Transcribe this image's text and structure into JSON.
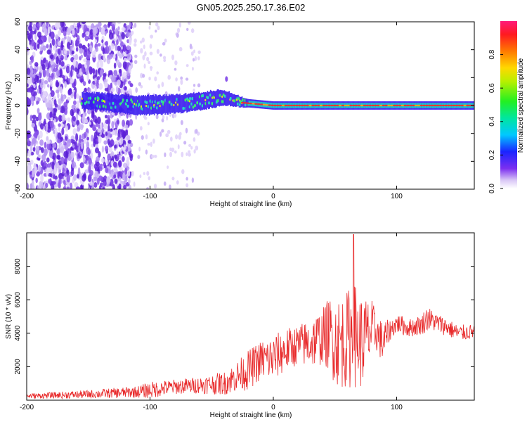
{
  "title": "GN05.2025.250.17.36.E02",
  "colors": {
    "axis": "#000000",
    "snr_line": "#e8292a",
    "ridge_core": "#e8362f",
    "ridge_mid": "#20c8c8",
    "ridge_outer": "#3a1cf0",
    "scatter_dark": "#5b1fd6",
    "scatter_light": "#c9b4f2"
  },
  "chart_data": [
    {
      "type": "heatmap",
      "name": "spectrogram",
      "xlabel": "Height of straight line (km)",
      "ylabel": "Frequency (Hz)",
      "xlim": [
        -200,
        163
      ],
      "ylim": [
        -60,
        60
      ],
      "x_ticks": [
        -200,
        -100,
        0,
        100
      ],
      "x_tick_labels": [
        "-200",
        "-100",
        "0",
        "100"
      ],
      "y_ticks": [
        -60,
        -40,
        -20,
        0,
        20,
        40,
        60
      ],
      "y_tick_labels": [
        "-60",
        "-40",
        "-20",
        "0",
        "20",
        "40",
        "60"
      ],
      "colorbar": {
        "label": "Normalized spectral amplitude",
        "range": [
          0,
          1
        ],
        "ticks": [
          0.0,
          0.2,
          0.4,
          0.6,
          0.8
        ],
        "tick_labels": [
          "0.0",
          "0.2",
          "0.4",
          "0.6",
          "0.8"
        ]
      },
      "features": {
        "noise_region_x": [
          -200,
          -115
        ],
        "sparse_noise_x": [
          -115,
          -60
        ],
        "band_start_x": -155,
        "band_center_freq_hz": [
          [
            -155,
            4
          ],
          [
            -110,
            0
          ],
          [
            -80,
            1
          ],
          [
            -60,
            3
          ],
          [
            -40,
            6
          ],
          [
            -25,
            2
          ],
          [
            0,
            0
          ],
          [
            50,
            0
          ],
          [
            163,
            0
          ]
        ],
        "band_halfwidth_hz": [
          [
            -155,
            6
          ],
          [
            -100,
            7
          ],
          [
            -45,
            6
          ],
          [
            -20,
            3
          ],
          [
            0,
            3
          ],
          [
            163,
            3
          ]
        ],
        "peak_amplitude_x": [
          -25,
          163
        ]
      }
    },
    {
      "type": "line",
      "name": "snr",
      "xlabel": "Height of straight line (km)",
      "ylabel": "SNR (10 * v/v)",
      "xlim": [
        -200,
        163
      ],
      "ylim": [
        0,
        10000
      ],
      "x_ticks": [
        -200,
        -100,
        0,
        100
      ],
      "x_tick_labels": [
        "-200",
        "-100",
        "0",
        "100"
      ],
      "y_ticks": [
        2000,
        4000,
        6000,
        8000
      ],
      "y_tick_labels": [
        "2000",
        "4000",
        "6000",
        "8000"
      ],
      "envelope": {
        "x": [
          -200,
          -150,
          -110,
          -100,
          -80,
          -60,
          -40,
          -30,
          -20,
          -10,
          0,
          10,
          20,
          30,
          40,
          45,
          50,
          55,
          60,
          64,
          68,
          72,
          76,
          80,
          85,
          88,
          95,
          100,
          110,
          120,
          125,
          130,
          140,
          150,
          163
        ],
        "mid": [
          250,
          350,
          500,
          600,
          800,
          900,
          1000,
          1400,
          1800,
          2400,
          2500,
          3000,
          3300,
          3400,
          3800,
          4000,
          3500,
          3500,
          3600,
          4000,
          3800,
          3400,
          3800,
          4200,
          4000,
          3400,
          4200,
          4600,
          4300,
          4500,
          4900,
          4700,
          4400,
          4000,
          4100
        ],
        "amp": [
          150,
          250,
          350,
          500,
          450,
          500,
          700,
          900,
          1200,
          1200,
          1400,
          1300,
          1200,
          1500,
          1700,
          2200,
          2600,
          2800,
          2900,
          3300,
          3000,
          2800,
          2400,
          1800,
          1000,
          1400,
          600,
          600,
          550,
          600,
          800,
          600,
          550,
          500,
          450
        ]
      },
      "peak": {
        "x": 65,
        "y": 9900
      }
    }
  ]
}
